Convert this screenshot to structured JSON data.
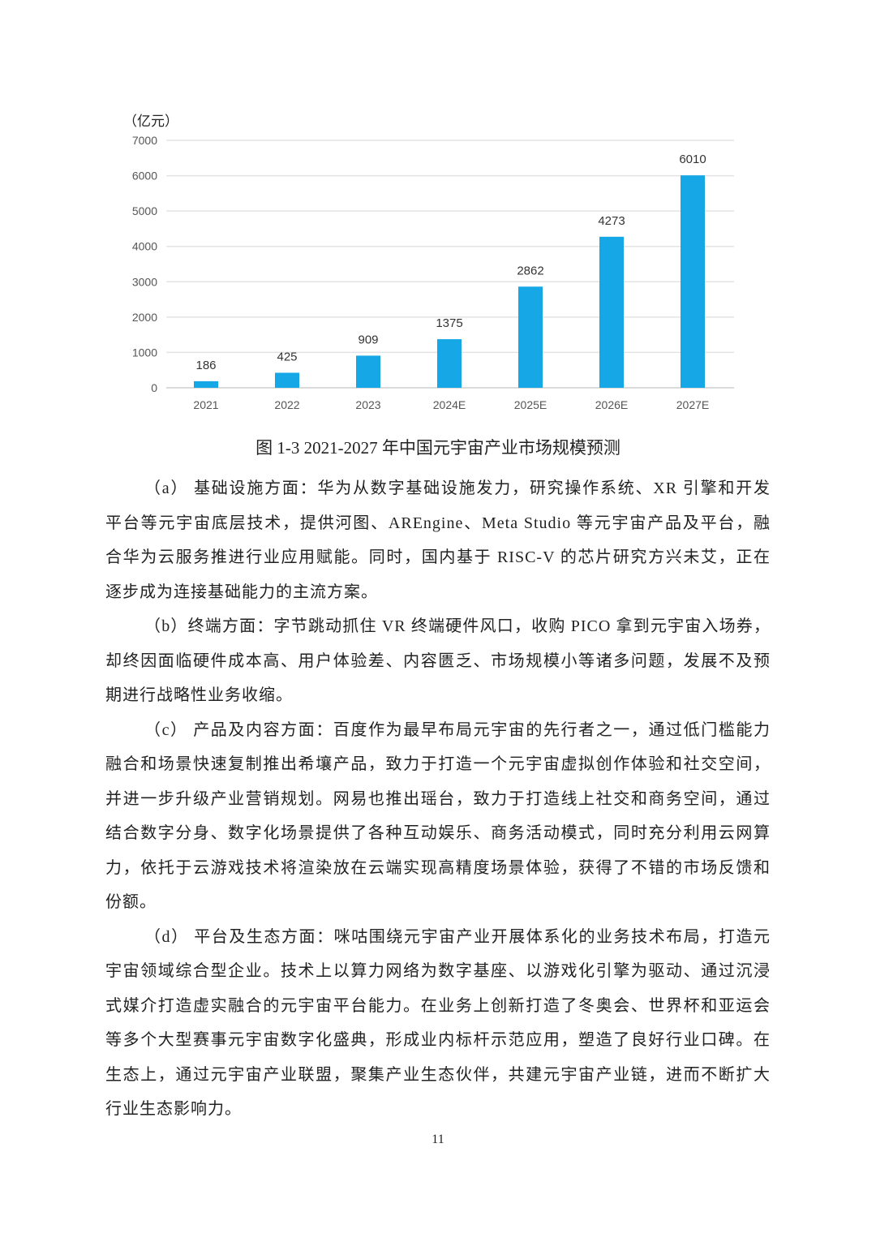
{
  "chart_data": {
    "type": "bar",
    "ylabel": "（亿元）",
    "categories": [
      "2021",
      "2022",
      "2023",
      "2024E",
      "2025E",
      "2026E",
      "2027E"
    ],
    "values": [
      186,
      425,
      909,
      1375,
      2862,
      4273,
      6010
    ],
    "ylim": [
      0,
      7000
    ],
    "yticks": [
      "0",
      "1000",
      "2000",
      "3000",
      "4000",
      "5000",
      "6000",
      "7000"
    ],
    "grid": true,
    "bar_color": "#16a8e6",
    "data_labels": true
  },
  "caption": "图 1-3 2021-2027 年中国元宇宙产业市场规模预测",
  "paragraphs": [
    {
      "lines": [
        "（a） 基础设施方面：华为从数字基础设施发力，研究操作系统、XR 引擎和开发",
        "平台等元宇宙底层技术，提供河图、AREngine、Meta Studio 等元宇宙产品及平台，融",
        "合华为云服务推进行业应用赋能。同时，国内基于 RISC-V 的芯片研究方兴未艾，正在",
        "逐步成为连接基础能力的主流方案。"
      ]
    },
    {
      "lines": [
        "（b）终端方面：字节跳动抓住 VR 终端硬件风口，收购 PICO 拿到元宇宙入场券，",
        "却终因面临硬件成本高、用户体验差、内容匮乏、市场规模小等诸多问题，发展不及预",
        "期进行战略性业务收缩。"
      ]
    },
    {
      "lines": [
        "（c） 产品及内容方面：百度作为最早布局元宇宙的先行者之一，通过低门槛能力",
        "融合和场景快速复制推出希壤产品，致力于打造一个元宇宙虚拟创作体验和社交空间，",
        "并进一步升级产业营销规划。网易也推出瑶台，致力于打造线上社交和商务空间，通过",
        "结合数字分身、数字化场景提供了各种互动娱乐、商务活动模式，同时充分利用云网算",
        "力，依托于云游戏技术将渲染放在云端实现高精度场景体验，获得了不错的市场反馈和",
        "份额。"
      ]
    },
    {
      "lines": [
        "（d） 平台及生态方面：咪咕围绕元宇宙产业开展体系化的业务技术布局，打造元",
        "宇宙领域综合型企业。技术上以算力网络为数字基座、以游戏化引擎为驱动、通过沉浸",
        "式媒介打造虚实融合的元宇宙平台能力。在业务上创新打造了冬奥会、世界杯和亚运会",
        "等多个大型赛事元宇宙数字化盛典，形成业内标杆示范应用，塑造了良好行业口碑。在",
        "生态上，通过元宇宙产业联盟，聚集产业生态伙伴，共建元宇宙产业链，进而不断扩大",
        "行业生态影响力。"
      ]
    }
  ],
  "page_number": "11"
}
